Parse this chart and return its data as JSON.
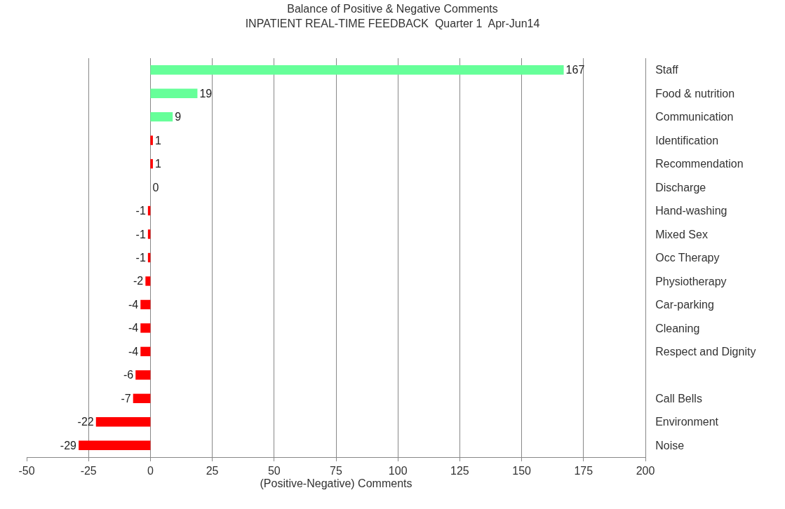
{
  "chart_data": {
    "type": "bar",
    "orientation": "horizontal",
    "title": "Balance of Positive & Negative Comments",
    "subtitle": "INPATIENT REAL-TIME FEEDBACK  Quarter 1  Apr-Jun14",
    "xlabel": "(Positive-Negative) Comments",
    "categories": [
      "Staff",
      "Food & nutrition",
      "Communication",
      "Identification",
      "Recommendation",
      "Discharge",
      "Hand-washing",
      "Mixed Sex",
      "Occ Therapy",
      "Physiotherapy",
      "Car-parking",
      "Cleaning",
      "Respect and Dignity",
      null,
      "Call Bells",
      "Environment",
      "Noise"
    ],
    "values": [
      167,
      19,
      9,
      1,
      1,
      0,
      -1,
      -1,
      -1,
      -2,
      -4,
      -4,
      -4,
      -6,
      -7,
      -22,
      -29
    ],
    "colors": [
      "#66ff99",
      "#66ff99",
      "#66ff99",
      "#ff0000",
      "#ff0000",
      "#ff0000",
      "#ff0000",
      "#ff0000",
      "#ff0000",
      "#ff0000",
      "#ff0000",
      "#ff0000",
      "#ff0000",
      "#ff0000",
      "#ff0000",
      "#ff0000",
      "#ff0000"
    ],
    "xlim": [
      -50,
      200
    ],
    "xticks": [
      -50,
      -25,
      0,
      25,
      50,
      75,
      100,
      125,
      150,
      175,
      200
    ],
    "grid": "x",
    "data_labels": true
  }
}
